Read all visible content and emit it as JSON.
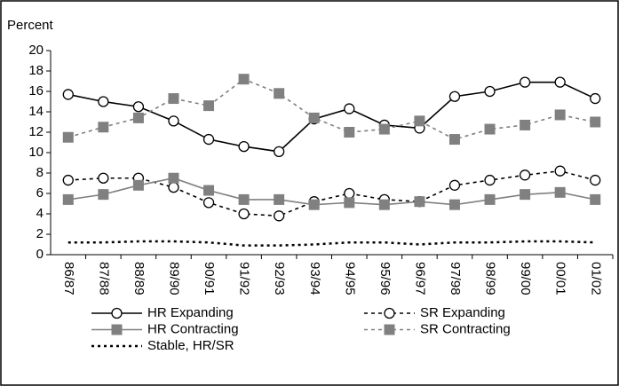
{
  "chart_data": {
    "type": "line",
    "y_label": "Percent",
    "categories": [
      "86/87",
      "87/88",
      "88/89",
      "89/90",
      "90/91",
      "91/92",
      "92/93",
      "93/94",
      "94/95",
      "95/96",
      "96/97",
      "97/98",
      "98/99",
      "99/00",
      "00/01",
      "01/02"
    ],
    "ylim": [
      0,
      20
    ],
    "yticks": [
      0,
      2,
      4,
      6,
      8,
      10,
      12,
      14,
      16,
      18,
      20
    ],
    "series": [
      {
        "name": "HR Expanding",
        "color": "#000000",
        "dashed": false,
        "marker": "circle",
        "values": [
          15.7,
          15.0,
          14.5,
          13.1,
          11.3,
          10.6,
          10.1,
          13.3,
          14.3,
          12.7,
          12.4,
          15.5,
          16.0,
          16.9,
          16.9,
          15.3
        ]
      },
      {
        "name": "SR Expanding",
        "color": "#000000",
        "dashed": true,
        "marker": "circle",
        "values": [
          7.3,
          7.5,
          7.5,
          6.6,
          5.1,
          4.0,
          3.8,
          5.2,
          6.0,
          5.4,
          5.2,
          6.8,
          7.3,
          7.8,
          8.2,
          7.3
        ]
      },
      {
        "name": "HR Contracting",
        "color": "#808080",
        "dashed": false,
        "marker": "square",
        "values": [
          5.4,
          5.9,
          6.8,
          7.5,
          6.3,
          5.4,
          5.4,
          4.9,
          5.1,
          4.9,
          5.2,
          4.9,
          5.4,
          5.9,
          6.1,
          5.4
        ]
      },
      {
        "name": "SR Contracting",
        "color": "#808080",
        "dashed": true,
        "marker": "square",
        "values": [
          11.5,
          12.5,
          13.4,
          15.3,
          14.6,
          17.2,
          15.8,
          13.4,
          12.0,
          12.3,
          13.1,
          11.3,
          12.3,
          12.7,
          13.7,
          13.0
        ]
      },
      {
        "name": "Stable, HR/SR",
        "color": "#000000",
        "dashed": true,
        "marker": "none",
        "values": [
          1.2,
          1.2,
          1.3,
          1.3,
          1.2,
          0.9,
          0.9,
          1.0,
          1.2,
          1.2,
          1.0,
          1.2,
          1.2,
          1.3,
          1.3,
          1.2
        ]
      }
    ]
  }
}
